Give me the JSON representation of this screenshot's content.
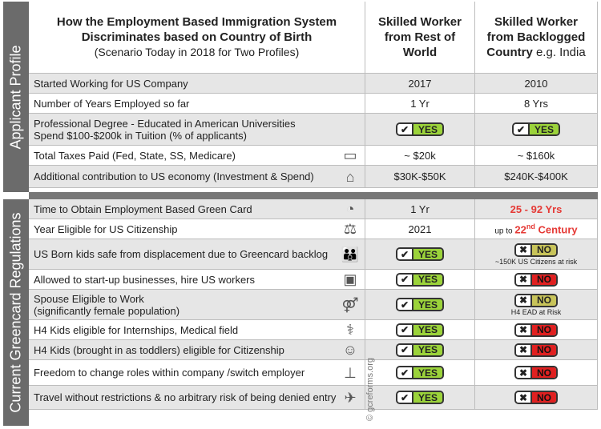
{
  "header": {
    "title_line1": "How the Employment Based Immigration System",
    "title_line2": "Discriminates based on Country of Birth",
    "subtitle": "(Scenario Today in 2018 for Two Profiles)",
    "col1_line1": "Skilled Worker",
    "col1_line2": "from Rest of",
    "col1_line3": "World",
    "col2_line1": "Skilled Worker",
    "col2_line2": "from Backlogged",
    "col2_line3a": "Country",
    "col2_line3b": " e.g. India"
  },
  "sections": {
    "applicant": "Applicant Profile",
    "regulations": "Current Greencard Regulations"
  },
  "profile_rows": [
    {
      "label": "Started Working for US Company",
      "c1": "2017",
      "c2": "2010"
    },
    {
      "label": "Number of Years Employed so far",
      "c1": "1 Yr",
      "c2": "8 Yrs"
    },
    {
      "label": "Professional Degree - Educated in American Universities",
      "label2": "Spend $100-$200k in Tuition (% of applicants)",
      "c1": "YES",
      "c2": "YES"
    },
    {
      "label": "Total Taxes Paid (Fed, State, SS, Medicare)",
      "c1": "~ $20k",
      "c2": "~ $160k",
      "icon": "money-icon"
    },
    {
      "label": "Additional contribution to US economy (Investment & Spend)",
      "c1": "$30K-$50K",
      "c2": "$240K-$400K",
      "icon": "house-icon"
    }
  ],
  "reg_rows": [
    {
      "label": "Time to Obtain Employment Based Green Card",
      "c1": "1 Yr",
      "c2": "25 - 92 Yrs",
      "icon": "stopwatch-icon"
    },
    {
      "label": "Year Eligible for US Citizenship",
      "c1": "2021",
      "c2_prefix": "up to ",
      "c2": "22",
      "c2_sup": "nd",
      "c2_suffix": " Century",
      "icon": "scales-icon"
    },
    {
      "label": "US Born kids safe from displacement due to Greencard backlog",
      "c1": "YES",
      "c2": "NO",
      "c2_note": "~150K US Citizens at risk",
      "icon": "family-icon"
    },
    {
      "label": "Allowed to start-up businesses, hire US workers",
      "c1": "YES",
      "c2": "NO",
      "icon": "briefcase-icon"
    },
    {
      "label": "Spouse Eligible to Work",
      "label2": "(significantly female population)",
      "c1": "YES",
      "c2": "NO",
      "c2_note": "H4 EAD at Risk",
      "icon": "couple-icon"
    },
    {
      "label": "H4 Kids eligible for Internships, Medical field",
      "c1": "YES",
      "c2": "NO",
      "icon": "stethoscope-icon"
    },
    {
      "label": "H4 Kids (brought in as toddlers) eligible for Citizenship",
      "c1": "YES",
      "c2": "NO",
      "icon": "toddler-icon"
    },
    {
      "label": "Freedom to change roles within company /switch employer",
      "c1": "YES",
      "c2": "NO",
      "icon": "org-chart-icon"
    },
    {
      "label": "Travel without restrictions & no arbitrary risk of being denied entry",
      "c1": "YES",
      "c2": "NO",
      "icon": "airplane-icon"
    }
  ],
  "watermark": "© gcreforms.org",
  "badge_marks": {
    "yes": "✔",
    "no": "✖",
    "warn": "✖"
  },
  "colors": {
    "yes": "#9bd33a",
    "no": "#e02020",
    "warn": "#c8c45a",
    "highlight": "#e53935",
    "sidebar": "#6b6b6b"
  }
}
